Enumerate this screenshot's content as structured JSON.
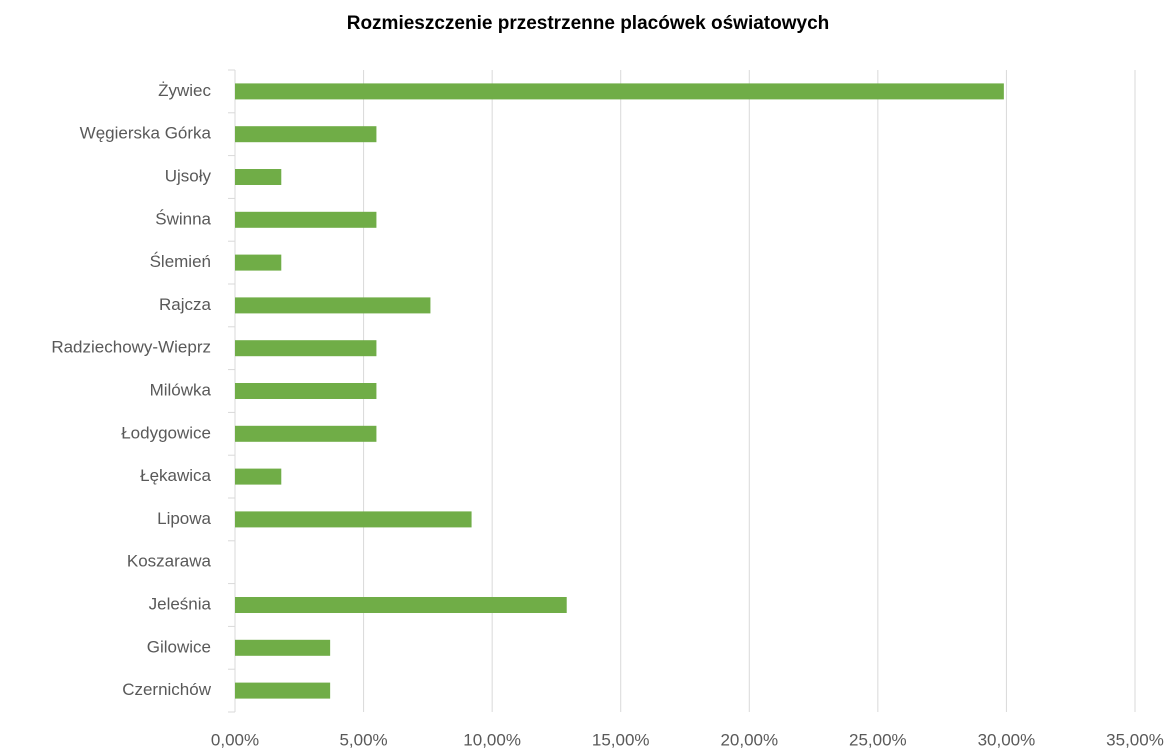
{
  "chart_data": {
    "type": "barh",
    "title": "Rozmieszczenie przestrzenne placówek oświatowych",
    "categories": [
      "Żywiec",
      "Węgierska Górka",
      "Ujsoły",
      "Świnna",
      "Ślemień",
      "Rajcza",
      "Radziechowy-Wieprz",
      "Milówka",
      "Łodygowice",
      "Łękawica",
      "Lipowa",
      "Koszarawa",
      "Jeleśnia",
      "Gilowice",
      "Czernichów"
    ],
    "values": [
      29.9,
      5.5,
      1.8,
      5.5,
      1.8,
      7.6,
      5.5,
      5.5,
      5.5,
      1.8,
      9.2,
      0,
      12.9,
      3.7,
      3.7
    ],
    "color": "#70ad47",
    "xlim": [
      0,
      35
    ],
    "xticks": [
      {
        "value": 0,
        "label": "0,00%"
      },
      {
        "value": 5,
        "label": "5,00%"
      },
      {
        "value": 10,
        "label": "10,00%"
      },
      {
        "value": 15,
        "label": "15,00%"
      },
      {
        "value": 20,
        "label": "20,00%"
      },
      {
        "value": 25,
        "label": "25,00%"
      },
      {
        "value": 30,
        "label": "30,00%"
      },
      {
        "value": 35,
        "label": "35,00%"
      }
    ],
    "grid": true
  }
}
